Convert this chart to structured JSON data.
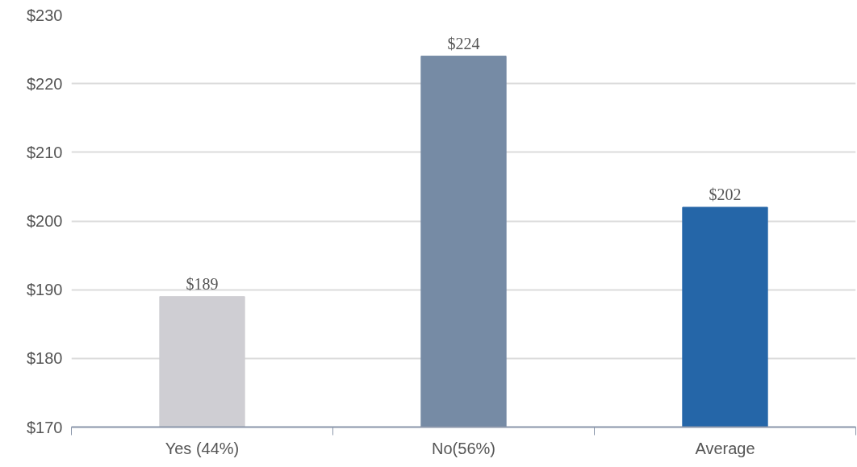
{
  "chart_data": {
    "type": "bar",
    "categories": [
      "Yes (44%)",
      "No(56%)",
      "Average"
    ],
    "values": [
      189,
      224,
      202
    ],
    "colors": [
      "#cfced3",
      "#768ba5",
      "#2566a8"
    ],
    "value_labels": [
      "$189",
      "$224",
      "$202"
    ],
    "ylim": [
      170,
      230
    ],
    "yticks": [
      {
        "value": 170,
        "label": "$170"
      },
      {
        "value": 180,
        "label": "$180"
      },
      {
        "value": 190,
        "label": "$190"
      },
      {
        "value": 200,
        "label": "$200"
      },
      {
        "value": 210,
        "label": "$210"
      },
      {
        "value": 220,
        "label": "$220"
      },
      {
        "value": 230,
        "label": "$230"
      }
    ],
    "grid": "y"
  }
}
